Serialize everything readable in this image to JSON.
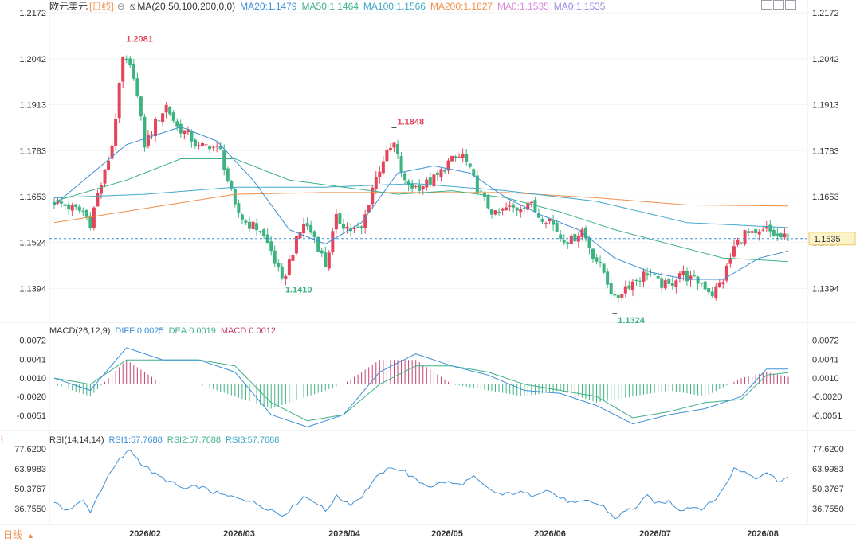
{
  "header": {
    "symbol": "欧元美元",
    "period": "[日线]",
    "ma_label": "MA(20,50,100,200,0,0)",
    "ma_values": [
      {
        "text": "MA20:1.1479",
        "color": "#3d8fd6"
      },
      {
        "text": "MA50:1.1464",
        "color": "#3fb088"
      },
      {
        "text": "MA100:1.1566",
        "color": "#40a8c8"
      },
      {
        "text": "MA200:1.1627",
        "color": "#f0904c"
      },
      {
        "text": "MA0:1.1535",
        "color": "#d88ad8"
      },
      {
        "text": "MA0:1.1535",
        "color": "#9a8ae0"
      }
    ]
  },
  "toolbar": {
    "icons": [
      "chart-type-icon",
      "add-indicator-icon",
      "grid-toggle-icon"
    ],
    "period_footer": "日线"
  },
  "colors": {
    "up": "#e5455a",
    "down": "#3cb380",
    "ma20": "#3d8fd6",
    "ma50": "#3fb088",
    "ma100": "#40a8c8",
    "ma200": "#f0904c",
    "dif": "#3d8fd6",
    "dea": "#3fb088",
    "rsi": "#3d8fd6",
    "current_price": "#3d8fd6"
  },
  "chart_data": [
    {
      "type": "candlestick",
      "title": "欧元美元",
      "x_labels": [
        "2026/02",
        "2026/03",
        "2026/04",
        "2026/05",
        "2026/06",
        "2026/07",
        "2026/08"
      ],
      "y_ticks": [
        "1.2172",
        "1.2042",
        "1.1913",
        "1.1783",
        "1.1653",
        "1.1524",
        "1.1394"
      ],
      "ylim": [
        1.131,
        1.2172
      ],
      "current_price": "1.1535",
      "annotations": [
        {
          "label": "1.2081",
          "type": "high"
        },
        {
          "label": "1.1848",
          "type": "high"
        },
        {
          "label": "1.1410",
          "type": "low"
        },
        {
          "label": "1.1324",
          "type": "low"
        }
      ],
      "close_path": [
        [
          0,
          1.164
        ],
        [
          5,
          1.162
        ],
        [
          8,
          1.161
        ],
        [
          10,
          1.158
        ],
        [
          12,
          1.166
        ],
        [
          14,
          1.172
        ],
        [
          16,
          1.18
        ],
        [
          19,
          1.204
        ],
        [
          22,
          1.2
        ],
        [
          25,
          1.18
        ],
        [
          28,
          1.186
        ],
        [
          31,
          1.191
        ],
        [
          34,
          1.185
        ],
        [
          37,
          1.183
        ],
        [
          40,
          1.179
        ],
        [
          43,
          1.18
        ],
        [
          46,
          1.178
        ],
        [
          50,
          1.162
        ],
        [
          53,
          1.158
        ],
        [
          57,
          1.156
        ],
        [
          60,
          1.15
        ],
        [
          63,
          1.141
        ],
        [
          66,
          1.15
        ],
        [
          69,
          1.158
        ],
        [
          72,
          1.154
        ],
        [
          75,
          1.146
        ],
        [
          78,
          1.159
        ],
        [
          82,
          1.156
        ],
        [
          85,
          1.156
        ],
        [
          88,
          1.168
        ],
        [
          91,
          1.176
        ],
        [
          94,
          1.18
        ],
        [
          97,
          1.169
        ],
        [
          100,
          1.168
        ],
        [
          103,
          1.169
        ],
        [
          106,
          1.171
        ],
        [
          109,
          1.175
        ],
        [
          113,
          1.177
        ],
        [
          116,
          1.17
        ],
        [
          119,
          1.164
        ],
        [
          122,
          1.16
        ],
        [
          125,
          1.162
        ],
        [
          128,
          1.162
        ],
        [
          131,
          1.164
        ],
        [
          134,
          1.16
        ],
        [
          137,
          1.159
        ],
        [
          140,
          1.154
        ],
        [
          143,
          1.153
        ],
        [
          146,
          1.156
        ],
        [
          149,
          1.149
        ],
        [
          152,
          1.144
        ],
        [
          155,
          1.136
        ],
        [
          158,
          1.14
        ],
        [
          161,
          1.142
        ],
        [
          164,
          1.144
        ],
        [
          167,
          1.141
        ],
        [
          170,
          1.14
        ],
        [
          173,
          1.144
        ],
        [
          176,
          1.142
        ],
        [
          179,
          1.141
        ],
        [
          182,
          1.138
        ],
        [
          185,
          1.142
        ],
        [
          188,
          1.151
        ],
        [
          191,
          1.155
        ],
        [
          194,
          1.154
        ],
        [
          197,
          1.156
        ],
        [
          200,
          1.154
        ],
        [
          203,
          1.1535
        ]
      ],
      "moving_averages": {
        "MA20": [
          [
            0,
            1.163
          ],
          [
            20,
            1.18
          ],
          [
            35,
            1.185
          ],
          [
            45,
            1.181
          ],
          [
            55,
            1.17
          ],
          [
            65,
            1.156
          ],
          [
            75,
            1.152
          ],
          [
            85,
            1.158
          ],
          [
            95,
            1.172
          ],
          [
            105,
            1.174
          ],
          [
            115,
            1.172
          ],
          [
            125,
            1.165
          ],
          [
            135,
            1.16
          ],
          [
            145,
            1.156
          ],
          [
            155,
            1.148
          ],
          [
            165,
            1.144
          ],
          [
            175,
            1.142
          ],
          [
            185,
            1.142
          ],
          [
            195,
            1.148
          ],
          [
            203,
            1.15
          ]
        ],
        "MA50": [
          [
            0,
            1.164
          ],
          [
            20,
            1.17
          ],
          [
            35,
            1.176
          ],
          [
            50,
            1.176
          ],
          [
            65,
            1.17
          ],
          [
            80,
            1.168
          ],
          [
            95,
            1.166
          ],
          [
            110,
            1.167
          ],
          [
            125,
            1.165
          ],
          [
            140,
            1.161
          ],
          [
            155,
            1.156
          ],
          [
            170,
            1.152
          ],
          [
            185,
            1.148
          ],
          [
            195,
            1.1475
          ],
          [
            203,
            1.147
          ]
        ],
        "MA100": [
          [
            0,
            1.165
          ],
          [
            25,
            1.166
          ],
          [
            50,
            1.168
          ],
          [
            75,
            1.168
          ],
          [
            100,
            1.169
          ],
          [
            125,
            1.167
          ],
          [
            150,
            1.164
          ],
          [
            175,
            1.158
          ],
          [
            203,
            1.1566
          ]
        ],
        "MA200": [
          [
            0,
            1.158
          ],
          [
            25,
            1.162
          ],
          [
            50,
            1.166
          ],
          [
            75,
            1.1665
          ],
          [
            100,
            1.1665
          ],
          [
            125,
            1.1665
          ],
          [
            150,
            1.165
          ],
          [
            175,
            1.163
          ],
          [
            203,
            1.1627
          ]
        ]
      }
    },
    {
      "type": "bar",
      "title": "MACD(26,12,9)",
      "legend": [
        {
          "text": "DIFF:0.0025",
          "color": "#3d8fd6"
        },
        {
          "text": "DEA:0.0019",
          "color": "#3fb088"
        },
        {
          "text": "MACD:0.0012",
          "color": "#c04070"
        }
      ],
      "y_ticks": [
        "0.0072",
        "0.0041",
        "0.0010",
        "-0.0020",
        "-0.0051"
      ],
      "ylim": [
        -0.0072,
        0.0082
      ],
      "diff_path": [
        [
          0,
          0.001
        ],
        [
          10,
          -0.001
        ],
        [
          20,
          0.006
        ],
        [
          30,
          0.004
        ],
        [
          40,
          0.004
        ],
        [
          50,
          0.002
        ],
        [
          60,
          -0.005
        ],
        [
          70,
          -0.007
        ],
        [
          80,
          -0.005
        ],
        [
          90,
          0.002
        ],
        [
          100,
          0.005
        ],
        [
          110,
          0.003
        ],
        [
          120,
          0.0015
        ],
        [
          130,
          -0.001
        ],
        [
          140,
          -0.0015
        ],
        [
          150,
          -0.0035
        ],
        [
          160,
          -0.0065
        ],
        [
          170,
          -0.005
        ],
        [
          180,
          -0.004
        ],
        [
          190,
          -0.002
        ],
        [
          197,
          0.0025
        ],
        [
          203,
          0.0025
        ]
      ],
      "dea_path": [
        [
          0,
          0.001
        ],
        [
          10,
          0.0
        ],
        [
          20,
          0.004
        ],
        [
          30,
          0.004
        ],
        [
          40,
          0.004
        ],
        [
          50,
          0.003
        ],
        [
          60,
          -0.003
        ],
        [
          70,
          -0.006
        ],
        [
          80,
          -0.005
        ],
        [
          90,
          0.0
        ],
        [
          100,
          0.003
        ],
        [
          110,
          0.003
        ],
        [
          120,
          0.002
        ],
        [
          130,
          0.0
        ],
        [
          140,
          -0.001
        ],
        [
          150,
          -0.002
        ],
        [
          160,
          -0.0055
        ],
        [
          170,
          -0.0045
        ],
        [
          180,
          -0.003
        ],
        [
          190,
          -0.0025
        ],
        [
          197,
          0.0015
        ],
        [
          203,
          0.0019
        ]
      ]
    },
    {
      "type": "line",
      "title": "RSI(14,14,14)",
      "legend": [
        {
          "text": "RSI1:57.7688",
          "color": "#3d8fd6"
        },
        {
          "text": "RSI2:57.7688",
          "color": "#3fb088"
        },
        {
          "text": "RSI3:57.7688",
          "color": "#40a8c8"
        }
      ],
      "y_ticks": [
        "77.6200",
        "63.9983",
        "50.3767",
        "36.7550"
      ],
      "ylim": [
        27.5,
        82
      ],
      "values": [
        [
          0,
          40
        ],
        [
          4,
          36
        ],
        [
          8,
          42
        ],
        [
          10,
          35
        ],
        [
          14,
          55
        ],
        [
          18,
          70
        ],
        [
          21,
          77
        ],
        [
          24,
          68
        ],
        [
          28,
          60
        ],
        [
          32,
          55
        ],
        [
          36,
          50
        ],
        [
          40,
          52
        ],
        [
          44,
          48
        ],
        [
          48,
          45
        ],
        [
          52,
          44
        ],
        [
          56,
          40
        ],
        [
          60,
          36
        ],
        [
          63,
          32
        ],
        [
          66,
          38
        ],
        [
          69,
          45
        ],
        [
          72,
          42
        ],
        [
          75,
          35
        ],
        [
          78,
          45
        ],
        [
          82,
          40
        ],
        [
          85,
          45
        ],
        [
          88,
          55
        ],
        [
          91,
          62
        ],
        [
          94,
          65
        ],
        [
          97,
          62
        ],
        [
          100,
          56
        ],
        [
          104,
          52
        ],
        [
          108,
          55
        ],
        [
          112,
          53
        ],
        [
          116,
          58
        ],
        [
          120,
          50
        ],
        [
          124,
          46
        ],
        [
          128,
          48
        ],
        [
          132,
          46
        ],
        [
          136,
          50
        ],
        [
          140,
          44
        ],
        [
          144,
          40
        ],
        [
          148,
          42
        ],
        [
          152,
          38
        ],
        [
          155,
          30
        ],
        [
          158,
          35
        ],
        [
          161,
          38
        ],
        [
          164,
          45
        ],
        [
          167,
          40
        ],
        [
          170,
          42
        ],
        [
          173,
          36
        ],
        [
          176,
          38
        ],
        [
          179,
          37
        ],
        [
          182,
          41
        ],
        [
          185,
          50
        ],
        [
          188,
          64
        ],
        [
          191,
          62
        ],
        [
          194,
          58
        ],
        [
          197,
          62
        ],
        [
          200,
          56
        ],
        [
          203,
          58
        ]
      ]
    }
  ]
}
